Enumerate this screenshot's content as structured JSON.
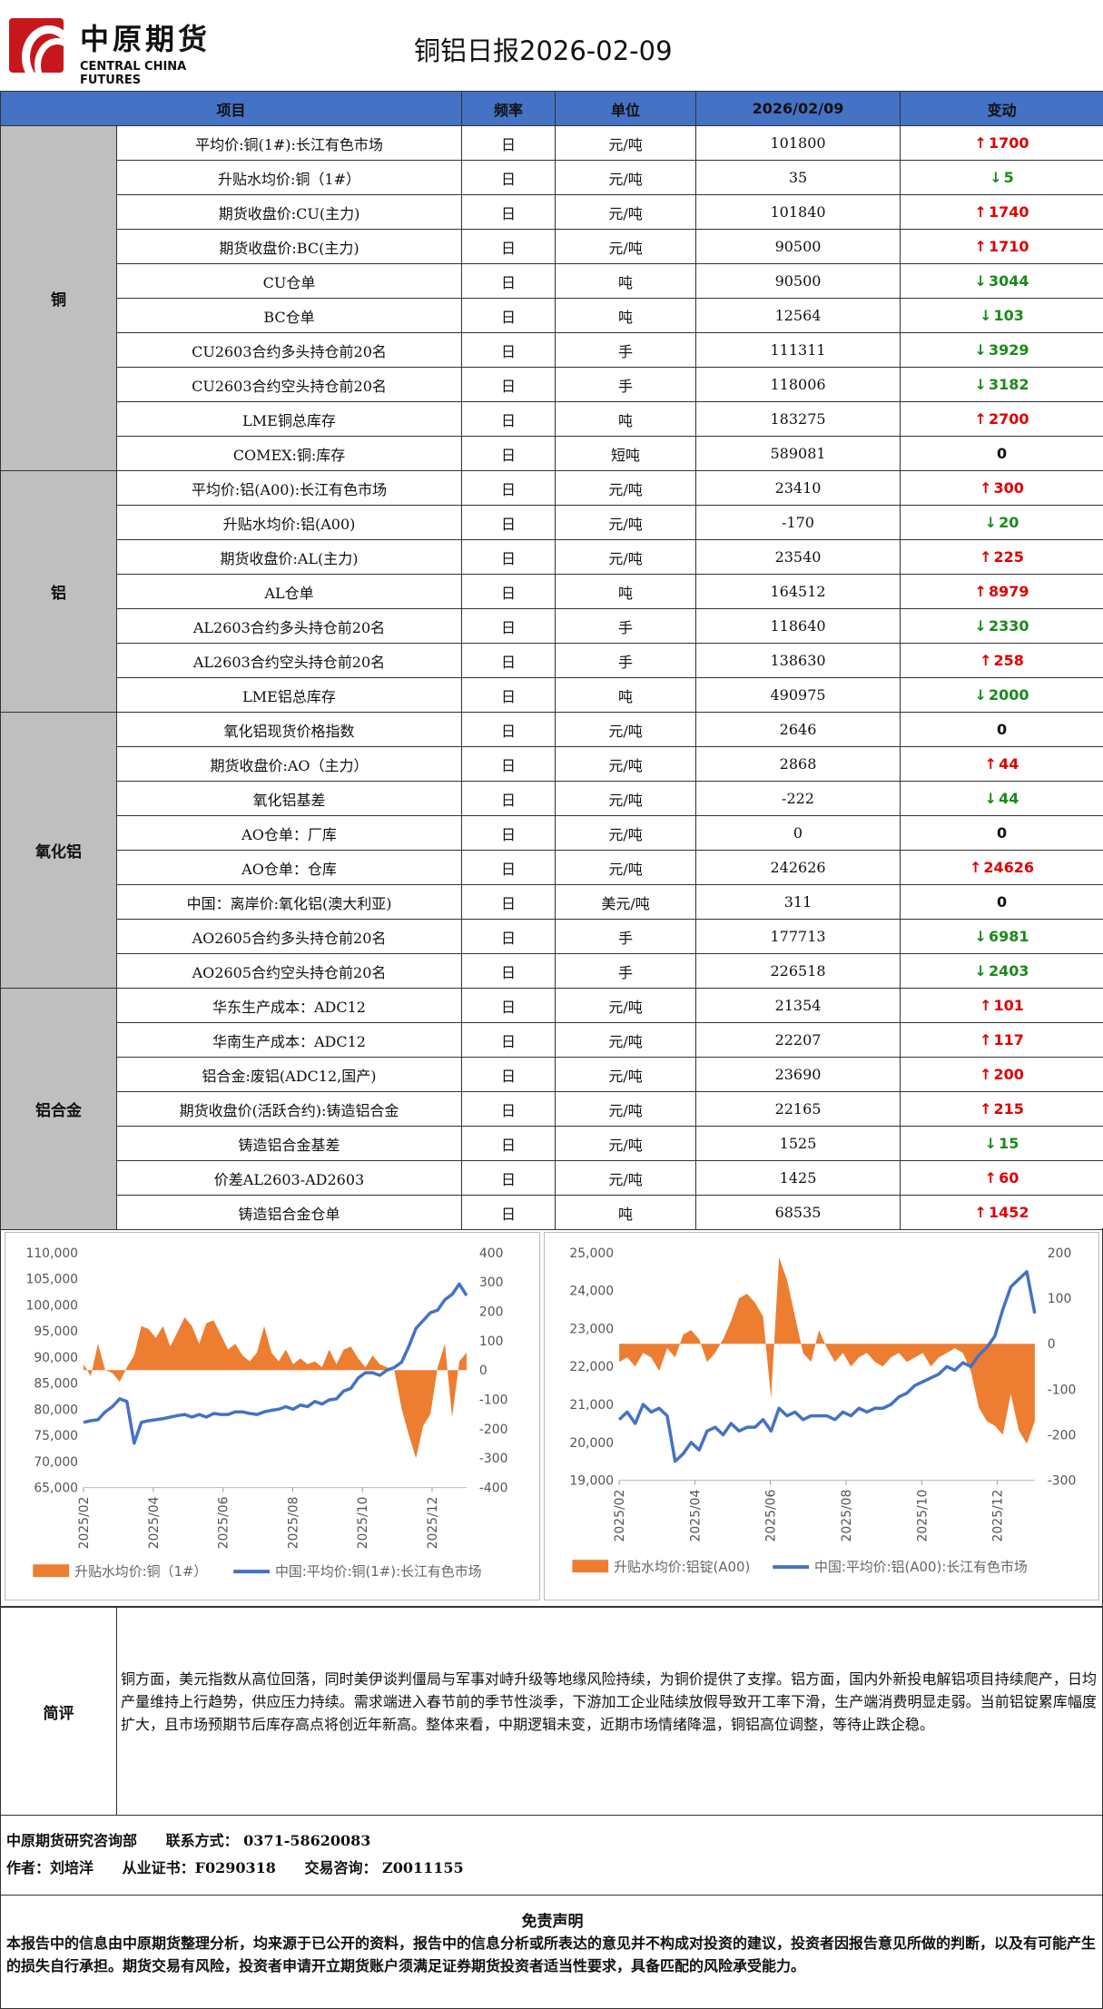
{
  "header": {
    "logo_cn": "中原期货",
    "logo_en": "CENTRAL CHINA FUTURES",
    "title": "铜铝日报2026-02-09"
  },
  "table": {
    "headers": [
      "项目",
      "频率",
      "单位",
      "2026/02/09",
      "变动"
    ],
    "groups": [
      {
        "name": "铜",
        "rows": [
          {
            "item": "平均价:铜(1#):长江有色市场",
            "freq": "日",
            "unit": "元/吨",
            "value": "101800",
            "change": "1700",
            "dir": "up"
          },
          {
            "item": "升贴水均价:铜（1#）",
            "freq": "日",
            "unit": "元/吨",
            "value": "35",
            "change": "5",
            "dir": "down"
          },
          {
            "item": "期货收盘价:CU(主力)",
            "freq": "日",
            "unit": "元/吨",
            "value": "101840",
            "change": "1740",
            "dir": "up"
          },
          {
            "item": "期货收盘价:BC(主力)",
            "freq": "日",
            "unit": "元/吨",
            "value": "90500",
            "change": "1710",
            "dir": "up"
          },
          {
            "item": "CU仓单",
            "freq": "日",
            "unit": "吨",
            "value": "90500",
            "change": "3044",
            "dir": "down"
          },
          {
            "item": "BC仓单",
            "freq": "日",
            "unit": "吨",
            "value": "12564",
            "change": "103",
            "dir": "down"
          },
          {
            "item": "CU2603合约多头持仓前20名",
            "freq": "日",
            "unit": "手",
            "value": "111311",
            "change": "3929",
            "dir": "down"
          },
          {
            "item": "CU2603合约空头持仓前20名",
            "freq": "日",
            "unit": "手",
            "value": "118006",
            "change": "3182",
            "dir": "down"
          },
          {
            "item": "LME铜总库存",
            "freq": "日",
            "unit": "吨",
            "value": "183275",
            "change": "2700",
            "dir": "up"
          },
          {
            "item": "COMEX:铜:库存",
            "freq": "日",
            "unit": "短吨",
            "value": "589081",
            "change": "0",
            "dir": "flat"
          }
        ]
      },
      {
        "name": "铝",
        "rows": [
          {
            "item": "平均价:铝(A00):长江有色市场",
            "freq": "日",
            "unit": "元/吨",
            "value": "23410",
            "change": "300",
            "dir": "up"
          },
          {
            "item": "升贴水均价:铝(A00)",
            "freq": "日",
            "unit": "元/吨",
            "value": "-170",
            "change": "20",
            "dir": "down"
          },
          {
            "item": "期货收盘价:AL(主力)",
            "freq": "日",
            "unit": "元/吨",
            "value": "23540",
            "change": "225",
            "dir": "up"
          },
          {
            "item": "AL仓单",
            "freq": "日",
            "unit": "吨",
            "value": "164512",
            "change": "8979",
            "dir": "up"
          },
          {
            "item": "AL2603合约多头持仓前20名",
            "freq": "日",
            "unit": "手",
            "value": "118640",
            "change": "2330",
            "dir": "down"
          },
          {
            "item": "AL2603合约空头持仓前20名",
            "freq": "日",
            "unit": "手",
            "value": "138630",
            "change": "258",
            "dir": "up"
          },
          {
            "item": "LME铝总库存",
            "freq": "日",
            "unit": "吨",
            "value": "490975",
            "change": "2000",
            "dir": "down"
          }
        ]
      },
      {
        "name": "氧化铝",
        "rows": [
          {
            "item": "氧化铝现货价格指数",
            "freq": "日",
            "unit": "元/吨",
            "value": "2646",
            "change": "0",
            "dir": "flat"
          },
          {
            "item": "期货收盘价:AO（主力）",
            "freq": "日",
            "unit": "元/吨",
            "value": "2868",
            "change": "44",
            "dir": "up"
          },
          {
            "item": "氧化铝基差",
            "freq": "日",
            "unit": "元/吨",
            "value": "-222",
            "change": "44",
            "dir": "down"
          },
          {
            "item": "AO仓单：厂库",
            "freq": "日",
            "unit": "元/吨",
            "value": "0",
            "change": "0",
            "dir": "flat"
          },
          {
            "item": "AO仓单：仓库",
            "freq": "日",
            "unit": "元/吨",
            "value": "242626",
            "change": "24626",
            "dir": "up"
          },
          {
            "item": "中国：离岸价:氧化铝(澳大利亚)",
            "freq": "日",
            "unit": "美元/吨",
            "value": "311",
            "change": "0",
            "dir": "flat"
          },
          {
            "item": "AO2605合约多头持仓前20名",
            "freq": "日",
            "unit": "手",
            "value": "177713",
            "change": "6981",
            "dir": "down"
          },
          {
            "item": "AO2605合约空头持仓前20名",
            "freq": "日",
            "unit": "手",
            "value": "226518",
            "change": "2403",
            "dir": "down"
          }
        ]
      },
      {
        "name": "铝合金",
        "rows": [
          {
            "item": "华东生产成本：ADC12",
            "freq": "日",
            "unit": "元/吨",
            "value": "21354",
            "change": "101",
            "dir": "up"
          },
          {
            "item": "华南生产成本：ADC12",
            "freq": "日",
            "unit": "元/吨",
            "value": "22207",
            "change": "117",
            "dir": "up"
          },
          {
            "item": "铝合金:废铝(ADC12,国产)",
            "freq": "日",
            "unit": "元/吨",
            "value": "23690",
            "change": "200",
            "dir": "up"
          },
          {
            "item": "期货收盘价(活跃合约):铸造铝合金",
            "freq": "日",
            "unit": "元/吨",
            "value": "22165",
            "change": "215",
            "dir": "up"
          },
          {
            "item": "铸造铝合金基差",
            "freq": "日",
            "unit": "元/吨",
            "value": "1525",
            "change": "15",
            "dir": "down"
          },
          {
            "item": "价差AL2603-AD2603",
            "freq": "日",
            "unit": "元/吨",
            "value": "1425",
            "change": "60",
            "dir": "up"
          },
          {
            "item": "铸造铝合金仓单",
            "freq": "日",
            "unit": "吨",
            "value": "68535",
            "change": "1452",
            "dir": "up"
          }
        ]
      }
    ],
    "arrows": {
      "up": "↑",
      "down": "↓"
    },
    "colors": {
      "up": "#e00000",
      "down": "#1a8a1a",
      "header": "#4472c4",
      "group": "#bfbfbf"
    }
  },
  "chart_data": [
    {
      "type": "line",
      "x_ticks": [
        "2025/02",
        "2025/04",
        "2025/06",
        "2025/08",
        "2025/10",
        "2025/12"
      ],
      "left_axis": {
        "ticks": [
          "110,000",
          "105,000",
          "100,000",
          "95,000",
          "90,000",
          "85,000",
          "80,000",
          "75,000",
          "70,000",
          "65,000"
        ],
        "range": [
          65000,
          110000
        ]
      },
      "right_axis": {
        "ticks": [
          "400",
          "300",
          "200",
          "100",
          "0",
          "-100",
          "-200",
          "-300",
          "-400"
        ],
        "range": [
          -400,
          400
        ]
      },
      "series": [
        {
          "name": "升贴水均价:铜（1#）",
          "kind": "area",
          "axis": "right",
          "color": "#ed7d31",
          "values": [
            20,
            -20,
            90,
            0,
            -10,
            -40,
            10,
            50,
            150,
            140,
            110,
            150,
            80,
            130,
            180,
            150,
            90,
            160,
            170,
            120,
            70,
            90,
            50,
            30,
            60,
            150,
            60,
            30,
            70,
            20,
            40,
            20,
            30,
            10,
            70,
            20,
            70,
            80,
            40,
            10,
            50,
            20,
            10,
            0,
            -130,
            -220,
            -300,
            -190,
            -150,
            10,
            90,
            -160,
            30,
            60
          ]
        },
        {
          "name": "中国:平均价:铜(1#):长江有色市场",
          "kind": "line",
          "axis": "left",
          "color": "#4472c4",
          "values": [
            77500,
            77800,
            78000,
            79500,
            80500,
            82000,
            81500,
            73500,
            77500,
            77800,
            78000,
            78200,
            78500,
            78800,
            79000,
            78500,
            79000,
            78500,
            79200,
            79000,
            79000,
            79500,
            79500,
            79200,
            79000,
            79500,
            79800,
            80000,
            80500,
            80000,
            80800,
            80500,
            81500,
            81000,
            81800,
            82000,
            83500,
            84000,
            86000,
            87000,
            87000,
            86500,
            87500,
            88000,
            89000,
            92000,
            95500,
            97000,
            98500,
            99000,
            101000,
            102000,
            104000,
            101800
          ]
        }
      ]
    },
    {
      "type": "line",
      "x_ticks": [
        "2025/02",
        "2025/04",
        "2025/06",
        "2025/08",
        "2025/10",
        "2025/12"
      ],
      "left_axis": {
        "ticks": [
          "25,000",
          "24,000",
          "23,000",
          "22,000",
          "21,000",
          "20,000",
          "19,000"
        ],
        "range": [
          19000,
          25000
        ]
      },
      "right_axis": {
        "ticks": [
          "200",
          "100",
          "0",
          "-100",
          "-200",
          "-300"
        ],
        "range": [
          -300,
          200
        ]
      },
      "series": [
        {
          "name": "升贴水均价:铝锭(A00)",
          "kind": "area",
          "axis": "right",
          "color": "#ed7d31",
          "values": [
            -40,
            -30,
            -50,
            -20,
            -30,
            -60,
            -10,
            -30,
            20,
            30,
            10,
            -40,
            -20,
            10,
            50,
            100,
            110,
            90,
            60,
            -120,
            190,
            140,
            60,
            -20,
            -40,
            30,
            -10,
            -40,
            -20,
            -50,
            -30,
            -20,
            -40,
            -50,
            -30,
            -20,
            -40,
            -30,
            -20,
            -50,
            -30,
            -20,
            -10,
            -20,
            -60,
            -140,
            -170,
            -180,
            -200,
            -110,
            -190,
            -220,
            -170
          ]
        },
        {
          "name": "中国:平均价:铝(A00):长江有色市场",
          "kind": "line",
          "axis": "left",
          "color": "#4472c4",
          "values": [
            20600,
            20800,
            20500,
            21000,
            20800,
            20900,
            20700,
            19500,
            19700,
            20000,
            19800,
            20300,
            20400,
            20200,
            20500,
            20300,
            20400,
            20400,
            20600,
            20300,
            20900,
            20700,
            20800,
            20600,
            20700,
            20700,
            20700,
            20600,
            20800,
            20700,
            20900,
            20800,
            20900,
            20900,
            21000,
            21200,
            21300,
            21500,
            21600,
            21700,
            21800,
            22000,
            21900,
            22100,
            22000,
            22300,
            22500,
            22800,
            23500,
            24100,
            24300,
            24500,
            23400
          ]
        }
      ]
    }
  ],
  "comment": {
    "label": "简评",
    "text": "铜方面，美元指数从高位回落，同时美伊谈判僵局与军事对峙升级等地缘风险持续，为铜价提供了支撑。铝方面，国内外新投电解铝项目持续爬产，日均产量维持上行趋势，供应压力持续。需求端进入春节前的季节性淡季，下游加工企业陆续放假导致开工率下滑，生产端消费明显走弱。当前铝锭累库幅度扩大，且市场预期节后库存高点将创近年新高。整体来看，中期逻辑未变，近期市场情绪降温，铜铝高位调整，等待止跌企稳。"
  },
  "footer": {
    "dept": "中原期货研究咨询部",
    "contact": "联系方式： 0371-58620083",
    "author": "作者：刘培洋",
    "license": "从业证书：F0290318",
    "trade": "交易咨询： Z0011155"
  },
  "disclaimer": {
    "title": "免责声明",
    "text": "本报告中的信息由中原期货整理分析，均来源于已公开的资料，报告中的信息分析或所表达的意见并不构成对投资的建议，投资者因报告意见所做的判断，以及有可能产生的损失自行承担。期货交易有风险，投资者申请开立期货账户须满足证券期货投资者适当性要求，具备匹配的风险承受能力。"
  }
}
